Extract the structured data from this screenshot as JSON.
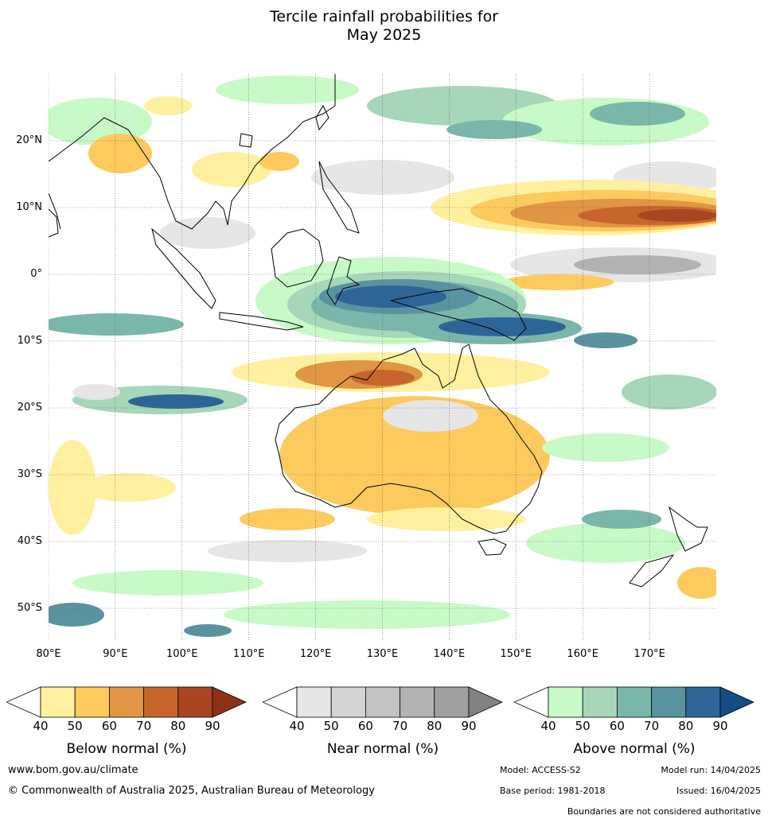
{
  "title": {
    "line1": "Tercile rainfall probabilities for",
    "line2": "May 2025"
  },
  "map": {
    "lat_labels": [
      "20°N",
      "10°N",
      "0°",
      "10°S",
      "20°S",
      "30°S",
      "40°S",
      "50°S"
    ],
    "lon_labels": [
      "80°E",
      "90°E",
      "100°E",
      "110°E",
      "120°E",
      "130°E",
      "140°E",
      "150°E",
      "160°E",
      "170°E"
    ],
    "lat_values": [
      20,
      10,
      0,
      -10,
      -20,
      -30,
      -40,
      -50
    ],
    "lon_values": [
      80,
      90,
      100,
      110,
      120,
      130,
      140,
      150,
      160,
      170
    ],
    "extent": {
      "lon_min": 80,
      "lon_max": 180,
      "lat_min": -55,
      "lat_max": 30
    }
  },
  "legends": [
    {
      "name": "Below normal (%)",
      "ticks": [
        "40",
        "50",
        "60",
        "70",
        "80",
        "90"
      ],
      "colors": [
        "#fff0a0",
        "#fdca5e",
        "#e09642",
        "#c8652d",
        "#aa4521",
        "#8e3218"
      ]
    },
    {
      "name": "Near normal (%)",
      "ticks": [
        "40",
        "50",
        "60",
        "70",
        "80",
        "90"
      ],
      "colors": [
        "#e6e6e6",
        "#d4d4d4",
        "#c3c3c3",
        "#b2b2b2",
        "#a0a0a0",
        "#828282"
      ]
    },
    {
      "name": "Above normal (%)",
      "ticks": [
        "40",
        "50",
        "60",
        "70",
        "80",
        "90"
      ],
      "colors": [
        "#c8fac8",
        "#a5d7b8",
        "#7ab7aa",
        "#5a93a0",
        "#2e6597",
        "#134c86"
      ]
    }
  ],
  "footer": {
    "website": "www.bom.gov.au/climate",
    "copyright": "© Commonwealth of Australia 2025, Australian Bureau of Meteorology",
    "model": "Model: ACCESS-S2",
    "model_run": "Model run: 14/04/2025",
    "base_period": "Base period: 1981-2018",
    "issued": "Issued: 16/04/2025",
    "disclaimer": "Boundaries are not considered authoritative"
  }
}
